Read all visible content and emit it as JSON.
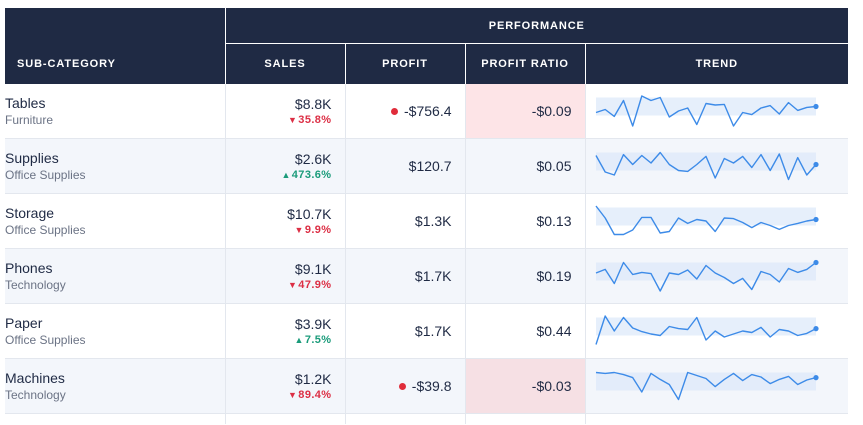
{
  "header": {
    "group_label": "PERFORMANCE",
    "columns": {
      "subcategory": "SUB-CATEGORY",
      "sales": "SALES",
      "profit": "PROFIT",
      "profit_ratio": "PROFIT RATIO",
      "trend": "TREND"
    }
  },
  "colors": {
    "header_bg": "#1f2a44",
    "negative_fill": "#fde4e7",
    "negative_delta": "#dc2f45",
    "positive_delta": "#1a9b7a",
    "trend_line": "#3d8be8",
    "trend_area": "#dbe8fa",
    "negative_dot": "#e02c3a"
  },
  "rows": [
    {
      "name": "Tables",
      "category": "Furniture",
      "sales": "$8.8K",
      "sales_delta": "35.8%",
      "sales_dir": "down",
      "profit": "-$756.4",
      "profit_negative": true,
      "profit_ratio": "-$0.09",
      "ratio_negative": true,
      "trend": [
        0.45,
        0.55,
        0.32,
        0.85,
        0.0,
        1.0,
        0.85,
        0.95,
        0.3,
        0.5,
        0.6,
        0.05,
        0.75,
        0.7,
        0.72,
        0.0,
        0.45,
        0.38,
        0.6,
        0.68,
        0.4,
        0.78,
        0.52,
        0.62,
        0.65
      ]
    },
    {
      "name": "Supplies",
      "category": "Office Supplies",
      "sales": "$2.6K",
      "sales_delta": "473.6%",
      "sales_dir": "up",
      "profit": "$120.7",
      "profit_negative": false,
      "profit_ratio": "$0.05",
      "ratio_negative": false,
      "trend": [
        0.85,
        0.3,
        0.2,
        0.88,
        0.55,
        0.85,
        0.6,
        0.95,
        0.55,
        0.35,
        0.32,
        0.55,
        0.82,
        0.1,
        0.75,
        0.6,
        0.82,
        0.45,
        0.88,
        0.35,
        0.9,
        0.05,
        0.78,
        0.2,
        0.55
      ]
    },
    {
      "name": "Storage",
      "category": "Office Supplies",
      "sales": "$10.7K",
      "sales_delta": "9.9%",
      "sales_dir": "down",
      "profit": "$1.3K",
      "profit_negative": false,
      "profit_ratio": "$0.13",
      "ratio_negative": false,
      "trend": [
        1.0,
        0.6,
        0.05,
        0.05,
        0.2,
        0.62,
        0.62,
        0.1,
        0.15,
        0.6,
        0.42,
        0.55,
        0.5,
        0.15,
        0.6,
        0.58,
        0.45,
        0.28,
        0.45,
        0.35,
        0.22,
        0.35,
        0.42,
        0.5,
        0.55
      ]
    },
    {
      "name": "Phones",
      "category": "Technology",
      "sales": "$9.1K",
      "sales_delta": "47.9%",
      "sales_dir": "down",
      "profit": "$1.7K",
      "profit_negative": false,
      "profit_ratio": "$0.19",
      "ratio_negative": false,
      "trend": [
        0.6,
        0.72,
        0.25,
        0.95,
        0.55,
        0.62,
        0.58,
        0.0,
        0.6,
        0.55,
        0.7,
        0.4,
        0.85,
        0.6,
        0.45,
        0.25,
        0.42,
        0.05,
        0.65,
        0.55,
        0.3,
        0.75,
        0.62,
        0.72,
        0.95
      ]
    },
    {
      "name": "Paper",
      "category": "Office Supplies",
      "sales": "$3.9K",
      "sales_delta": "7.5%",
      "sales_dir": "up",
      "profit": "$1.7K",
      "profit_negative": false,
      "profit_ratio": "$0.44",
      "ratio_negative": false,
      "trend": [
        0.05,
        1.0,
        0.5,
        0.95,
        0.6,
        0.48,
        0.4,
        0.35,
        0.65,
        0.58,
        0.55,
        0.95,
        0.2,
        0.5,
        0.3,
        0.4,
        0.5,
        0.45,
        0.62,
        0.3,
        0.55,
        0.5,
        0.35,
        0.42,
        0.58
      ]
    },
    {
      "name": "Machines",
      "category": "Technology",
      "sales": "$1.2K",
      "sales_delta": "89.4%",
      "sales_dir": "down",
      "profit": "-$39.8",
      "profit_negative": true,
      "profit_ratio": "-$0.03",
      "ratio_negative": true,
      "trend": [
        0.95,
        0.92,
        0.95,
        0.88,
        0.78,
        0.3,
        0.92,
        0.72,
        0.55,
        0.05,
        0.95,
        0.85,
        0.75,
        0.48,
        0.72,
        0.92,
        0.68,
        0.88,
        0.8,
        0.58,
        0.72,
        0.82,
        0.55,
        0.7,
        0.78
      ]
    }
  ]
}
